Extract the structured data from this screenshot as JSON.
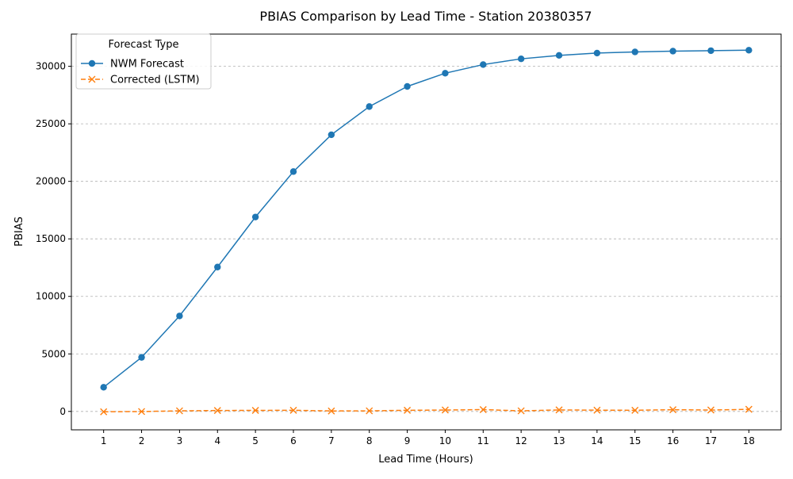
{
  "chart_data": {
    "type": "line",
    "title": "PBIAS Comparison by Lead Time - Station 20380357",
    "xlabel": "Lead Time (Hours)",
    "ylabel": "PBIAS",
    "x": [
      1,
      2,
      3,
      4,
      5,
      6,
      7,
      8,
      9,
      10,
      11,
      12,
      13,
      14,
      15,
      16,
      17,
      18
    ],
    "xticks": [
      "1",
      "2",
      "3",
      "4",
      "5",
      "6",
      "7",
      "8",
      "9",
      "10",
      "11",
      "12",
      "13",
      "14",
      "15",
      "16",
      "17",
      "18"
    ],
    "yticks": [
      0,
      5000,
      10000,
      15000,
      20000,
      25000,
      30000
    ],
    "ylim": [
      -1600,
      32800
    ],
    "xlim": [
      0.15,
      18.85
    ],
    "grid": "y-dashed",
    "legend": {
      "title": "Forecast Type",
      "placement": "top-left"
    },
    "series": [
      {
        "name": "NWM Forecast",
        "color": "#1f77b4",
        "marker": "circle",
        "linestyle": "solid",
        "values": [
          2100,
          4700,
          8300,
          12550,
          16900,
          20850,
          24050,
          26500,
          28250,
          29400,
          30150,
          30650,
          30950,
          31150,
          31250,
          31320,
          31360,
          31400
        ]
      },
      {
        "name": "Corrected (LSTM)",
        "color": "#ff7f0e",
        "marker": "x",
        "linestyle": "dashed",
        "values": [
          -30,
          -10,
          50,
          80,
          90,
          100,
          40,
          50,
          100,
          120,
          160,
          50,
          130,
          110,
          100,
          150,
          120,
          180
        ]
      }
    ]
  }
}
